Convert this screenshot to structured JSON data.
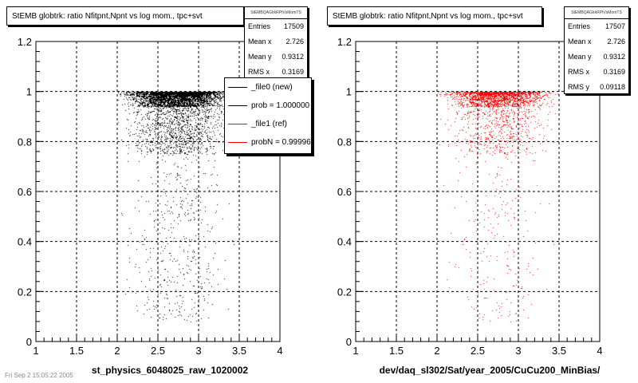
{
  "chart_data": [
    {
      "type": "scatter",
      "title": "StEMB globtrk: ratio Nfitpnt,Npnt vs log mom., tpc+svt",
      "xlabel": "st_physics_6048025_raw_1020002",
      "ylabel": "",
      "xlim": [
        1,
        4
      ],
      "ylim": [
        0,
        1.2
      ],
      "x_ticks": [
        "1",
        "1.5",
        "2",
        "2.5",
        "3",
        "3.5",
        "4"
      ],
      "y_ticks": [
        "0",
        "0.2",
        "0.4",
        "0.6",
        "0.8",
        "1",
        "1.2"
      ],
      "grid": true,
      "marker_color": "#000000",
      "density": {
        "x_range": [
          2.0,
          3.9
        ],
        "x_peak": 2.75,
        "y_max": 1.0,
        "y_band": [
          0.8,
          1.0
        ],
        "tail_to": 0.08
      },
      "stats": {
        "header": "StEMBQAGlrkRPtVsMomTS",
        "rows": [
          {
            "key": "Entries",
            "value": "17509"
          },
          {
            "key": "Mean x",
            "value": "2.726"
          },
          {
            "key": "Mean y",
            "value": "0.9312"
          },
          {
            "key": "RMS x",
            "value": "0.3169"
          }
        ]
      },
      "legend": {
        "entries": [
          {
            "label": "_file0 (new)",
            "color": "#000000"
          },
          {
            "label": "prob = 1.000000",
            "color": "#000000"
          },
          {
            "label": "_file1 (ref)",
            "color": "#ff0000"
          },
          {
            "label": "probN = 0.999960",
            "color": "#ff0000"
          }
        ]
      }
    },
    {
      "type": "scatter",
      "title": "StEMB globtrk: ratio Nfitpnt,Npnt vs log mom., tpc+svt",
      "xlabel": "dev/daq_sl302/Sat/year_2005/CuCu200_MinBias/",
      "ylabel": "",
      "xlim": [
        1,
        4
      ],
      "ylim": [
        0,
        1.2
      ],
      "x_ticks": [
        "1",
        "1.5",
        "2",
        "2.5",
        "3",
        "3.5",
        "4"
      ],
      "y_ticks": [
        "0",
        "0.2",
        "0.4",
        "0.6",
        "0.8",
        "1",
        "1.2"
      ],
      "grid": true,
      "marker_color": "#ff0000",
      "density": {
        "x_range": [
          2.0,
          3.9
        ],
        "x_peak": 2.75,
        "y_max": 1.0,
        "y_band": [
          0.8,
          1.0
        ],
        "tail_to": 0.08
      },
      "stats": {
        "header": "StEMBQAGlrkRPtVsMomTS",
        "rows": [
          {
            "key": "Entries",
            "value": "17507"
          },
          {
            "key": "Mean x",
            "value": "2.726"
          },
          {
            "key": "Mean y",
            "value": "0.9312"
          },
          {
            "key": "RMS x",
            "value": "0.3169"
          },
          {
            "key": "RMS y",
            "value": "0.09118"
          }
        ]
      }
    }
  ],
  "footer": "Fri Sep  2 15:05:22 2005"
}
